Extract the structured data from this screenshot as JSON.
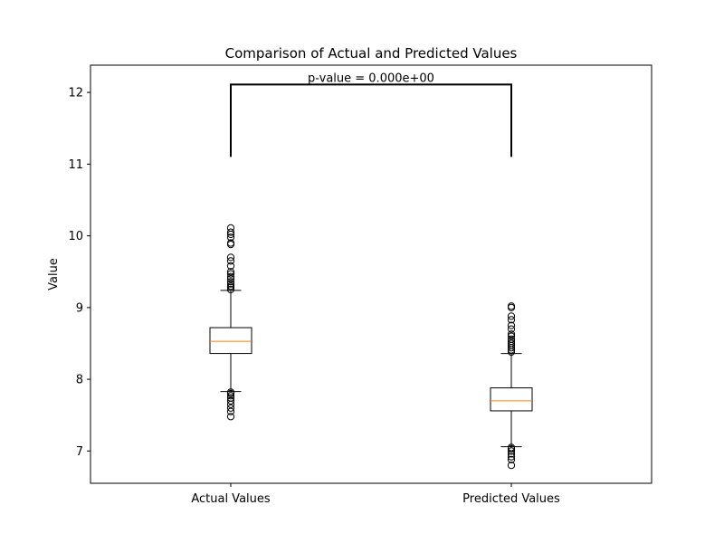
{
  "chart_data": {
    "type": "box",
    "title": "Comparison of Actual and Predicted Values",
    "xlabel": "",
    "ylabel": "Value",
    "categories": [
      "Actual Values",
      "Predicted Values"
    ],
    "ylim": [
      6.55,
      12.38
    ],
    "yticks": [
      7,
      8,
      9,
      10,
      11,
      12
    ],
    "grid": false,
    "boxes": [
      {
        "name": "Actual Values",
        "whisker_low": 7.83,
        "q1": 8.36,
        "median": 8.53,
        "q3": 8.72,
        "whisker_high": 9.24,
        "outliers": [
          7.48,
          7.55,
          7.6,
          7.65,
          7.7,
          7.74,
          7.77,
          7.8,
          7.82,
          9.25,
          9.28,
          9.3,
          9.33,
          9.36,
          9.4,
          9.43,
          9.47,
          9.5,
          9.58,
          9.65,
          9.7,
          9.88,
          9.9,
          9.98,
          10.02,
          10.05,
          10.11
        ]
      },
      {
        "name": "Predicted Values",
        "whisker_low": 7.06,
        "q1": 7.56,
        "median": 7.7,
        "q3": 7.88,
        "whisker_high": 8.36,
        "outliers": [
          6.8,
          6.88,
          6.92,
          6.96,
          7.0,
          7.03,
          7.05,
          8.38,
          8.41,
          8.44,
          8.47,
          8.5,
          8.53,
          8.56,
          8.6,
          8.63,
          8.7,
          8.75,
          8.83,
          8.88,
          9.0,
          9.02
        ]
      }
    ],
    "annotation": {
      "text": "p-value = 0.000e+00",
      "bracket_y_low": 11.1,
      "bracket_y_high": 12.11
    },
    "colors": {
      "box": "#000000",
      "median": "#ff7f0e",
      "outlier": "#000000"
    }
  }
}
